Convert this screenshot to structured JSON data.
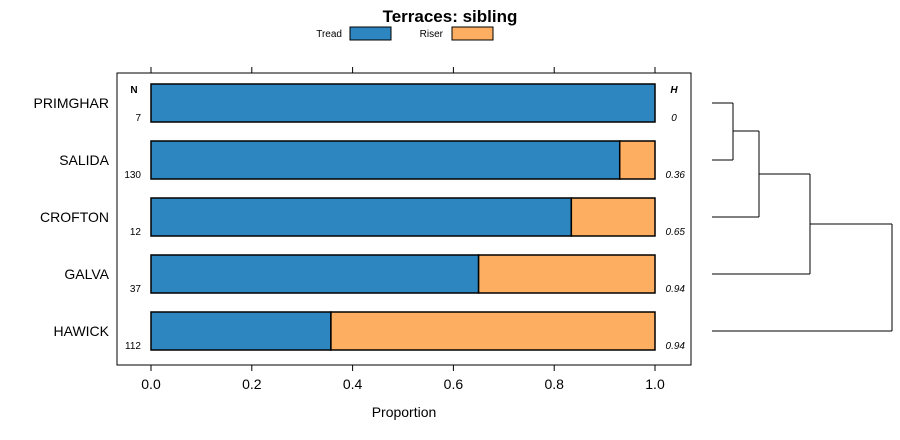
{
  "chart_data": {
    "type": "bar",
    "stacked": true,
    "orientation": "horizontal",
    "title": "Terraces: sibling",
    "xlabel": "Proportion",
    "xlim": [
      0,
      1
    ],
    "xticks": [
      "0.0",
      "0.2",
      "0.4",
      "0.6",
      "0.8",
      "1.0"
    ],
    "xtick_values": [
      0,
      0.2,
      0.4,
      0.6,
      0.8,
      1.0
    ],
    "categories": [
      "PRIMGHAR",
      "SALIDA",
      "CROFTON",
      "GALVA",
      "HAWICK"
    ],
    "series": [
      {
        "name": "Tread",
        "color": "#2e86c1",
        "values": [
          1.0,
          0.93,
          0.834,
          0.65,
          0.357
        ]
      },
      {
        "name": "Riser",
        "color": "#fdae61",
        "values": [
          0.0,
          0.07,
          0.166,
          0.35,
          0.643
        ]
      }
    ],
    "n_header": "N",
    "n_values": [
      "7",
      "130",
      "12",
      "37",
      "112"
    ],
    "h_header": "H",
    "h_values": [
      "0",
      "0.36",
      "0.65",
      "0.94",
      "0.94"
    ],
    "legend_position": "top",
    "dendrogram": "right"
  }
}
